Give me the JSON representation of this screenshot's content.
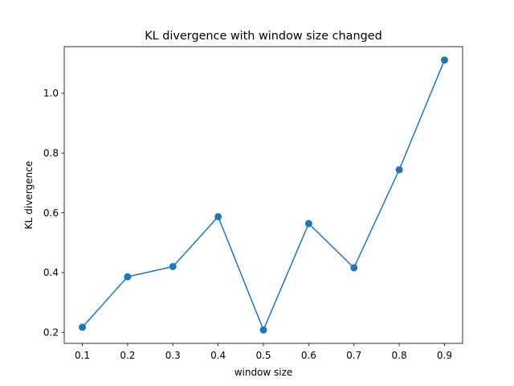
{
  "chart_data": {
    "type": "line",
    "title": "KL divergence with window size changed",
    "xlabel": "window size",
    "ylabel": "KL divergence",
    "x": [
      0.1,
      0.2,
      0.3,
      0.4,
      0.5,
      0.6,
      0.7,
      0.8,
      0.9
    ],
    "series": [
      {
        "values": [
          0.217,
          0.386,
          0.42,
          0.587,
          0.208,
          0.564,
          0.416,
          0.744,
          1.111
        ]
      }
    ],
    "xlim": [
      0.06,
      0.94
    ],
    "ylim": [
      0.163,
      1.156
    ],
    "xticks": [
      0.1,
      0.2,
      0.3,
      0.4,
      0.5,
      0.6,
      0.7,
      0.8,
      0.9
    ],
    "xtick_labels": [
      "0.1",
      "0.2",
      "0.3",
      "0.4",
      "0.5",
      "0.6",
      "0.7",
      "0.8",
      "0.9"
    ],
    "yticks": [
      0.2,
      0.4,
      0.6,
      0.8,
      1.0
    ],
    "ytick_labels": [
      "0.2",
      "0.4",
      "0.6",
      "0.8",
      "1.0"
    ],
    "grid": false,
    "markers": true,
    "color": "#1f77b4"
  }
}
